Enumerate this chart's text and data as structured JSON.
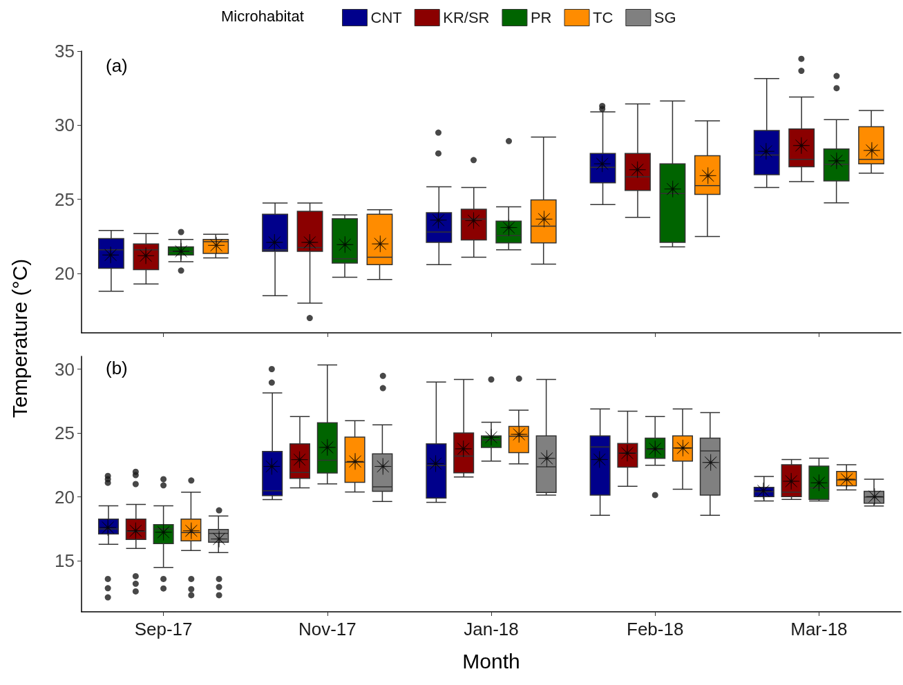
{
  "chart_data": [
    {
      "type": "box",
      "annotations": [
        "(a)"
      ],
      "categories": [
        null,
        null,
        null,
        null,
        null
      ],
      "ylim": [
        16,
        35
      ],
      "yticks": [
        20,
        25,
        30,
        35
      ],
      "tick_labels": "y",
      "series": [
        {
          "color": "#00008b",
          "boxes": [
            {
              "low": 18.8,
              "q1": 20.35,
              "median": 21.6,
              "q3": 22.36,
              "high": 22.9,
              "mean": 21.25
            },
            {
              "low": 18.5,
              "q1": 21.5,
              "median": 21.6,
              "q3": 24.0,
              "high": 24.75,
              "mean": 22.1
            },
            {
              "low": 20.6,
              "q1": 22.1,
              "median": 22.8,
              "q3": 24.1,
              "high": 25.85,
              "mean": 23.6,
              "outliers": [
                28.1,
                29.5
              ]
            },
            {
              "low": 24.65,
              "q1": 26.12,
              "median": 27.16,
              "q3": 28.1,
              "high": 30.9,
              "mean": 27.4,
              "outliers": [
                31.1,
                31.3
              ]
            },
            {
              "low": 25.8,
              "q1": 26.67,
              "median": 27.99,
              "q3": 29.65,
              "high": 33.15,
              "mean": 28.24
            }
          ]
        },
        {
          "color": "#8b0000",
          "boxes": [
            {
              "low": 19.3,
              "q1": 20.26,
              "median": 21.6,
              "q3": 22.0,
              "high": 22.7,
              "mean": 21.2
            },
            {
              "low": 18.0,
              "q1": 21.5,
              "median": 21.75,
              "q3": 24.2,
              "high": 24.75,
              "mean": 22.1,
              "outliers": [
                17.0
              ]
            },
            {
              "low": 21.1,
              "q1": 22.26,
              "median": 23.67,
              "q3": 24.34,
              "high": 25.8,
              "mean": 23.57,
              "outliers": [
                27.65
              ]
            },
            {
              "low": 23.79,
              "q1": 25.6,
              "median": 26.53,
              "q3": 28.1,
              "high": 31.44,
              "mean": 27.0
            },
            {
              "low": 26.2,
              "q1": 27.2,
              "median": 27.7,
              "q3": 29.75,
              "high": 31.9,
              "mean": 28.63,
              "outliers": [
                33.67,
                34.48
              ]
            }
          ]
        },
        {
          "color": "#006400",
          "boxes": [
            {
              "low": 20.8,
              "q1": 21.25,
              "median": 21.5,
              "q3": 21.8,
              "high": 22.3,
              "mean": 21.5,
              "outliers": [
                20.2,
                22.8
              ]
            },
            {
              "low": 19.75,
              "q1": 20.7,
              "median": 21.0,
              "q3": 23.7,
              "high": 23.95,
              "mean": 21.95
            },
            {
              "low": 21.6,
              "q1": 22.06,
              "median": 22.55,
              "q3": 23.53,
              "high": 24.5,
              "mean": 23.1,
              "outliers": [
                28.93
              ]
            },
            {
              "low": 21.8,
              "q1": 22.1,
              "median": 25.4,
              "q3": 27.4,
              "high": 31.64,
              "mean": 25.7
            },
            {
              "low": 24.77,
              "q1": 26.24,
              "median": 27.36,
              "q3": 28.4,
              "high": 30.38,
              "mean": 27.6,
              "outliers": [
                32.5,
                33.32
              ]
            }
          ]
        },
        {
          "color": "#ff8c00",
          "boxes": [
            {
              "low": 21.05,
              "q1": 21.35,
              "median": 22.15,
              "q3": 22.3,
              "high": 22.65,
              "mean": 21.9
            },
            {
              "low": 19.6,
              "q1": 20.6,
              "median": 21.1,
              "q3": 24.0,
              "high": 24.3,
              "mean": 22.0
            },
            {
              "low": 20.63,
              "q1": 22.06,
              "median": 23.2,
              "q3": 24.96,
              "high": 29.2,
              "mean": 23.67
            },
            {
              "low": 22.5,
              "q1": 25.34,
              "median": 25.93,
              "q3": 27.95,
              "high": 30.3,
              "mean": 26.6
            },
            {
              "low": 26.77,
              "q1": 27.4,
              "median": 27.7,
              "q3": 29.9,
              "high": 30.99,
              "mean": 28.3
            }
          ]
        }
      ]
    },
    {
      "type": "box",
      "annotations": [
        "(b)"
      ],
      "categories": [
        "Sep-17",
        "Nov-17",
        "Jan-18",
        "Feb-18",
        "Mar-18"
      ],
      "ylim": [
        11,
        31
      ],
      "yticks": [
        15,
        20,
        25,
        30
      ],
      "xlabel": "Month",
      "ylabel": "Temperature (°C)",
      "legend": "top",
      "legend_title": "Microhabitat",
      "series": [
        {
          "name": "CNT",
          "color": "#00008b",
          "boxes": [
            {
              "low": 16.28,
              "q1": 17.09,
              "median": 17.49,
              "q3": 18.26,
              "high": 19.3,
              "mean": 17.6,
              "outliers": [
                12.13,
                12.85,
                13.57,
                21.1,
                21.38,
                21.64
              ]
            },
            {
              "low": 19.79,
              "q1": 20.1,
              "median": 20.47,
              "q3": 23.55,
              "high": 28.13,
              "mean": 22.38,
              "outliers": [
                28.94,
                30.0
              ]
            },
            {
              "low": 19.57,
              "q1": 19.9,
              "median": 22.45,
              "q3": 24.15,
              "high": 28.98,
              "mean": 22.6
            },
            {
              "low": 18.55,
              "q1": 20.14,
              "median": 23.91,
              "q3": 24.77,
              "high": 26.88,
              "mean": 22.92
            },
            {
              "low": 19.68,
              "q1": 20.02,
              "median": 20.4,
              "q3": 20.75,
              "high": 21.6,
              "mean": 20.47
            }
          ]
        },
        {
          "name": "KR/SR",
          "color": "#8b0000",
          "boxes": [
            {
              "low": 15.96,
              "q1": 16.66,
              "median": 17.3,
              "q3": 18.26,
              "high": 19.4,
              "mean": 17.34,
              "outliers": [
                12.6,
                13.2,
                13.79,
                21.0,
                21.7,
                21.96
              ]
            },
            {
              "low": 20.7,
              "q1": 21.45,
              "median": 21.91,
              "q3": 24.15,
              "high": 26.28,
              "mean": 22.91
            },
            {
              "low": 21.56,
              "q1": 21.88,
              "median": 23.19,
              "q3": 25.0,
              "high": 29.19,
              "mean": 23.76
            },
            {
              "low": 20.82,
              "q1": 22.33,
              "median": 23.42,
              "q3": 24.17,
              "high": 26.7,
              "mean": 23.42
            },
            {
              "low": 19.8,
              "q1": 20.02,
              "median": 20.36,
              "q3": 22.51,
              "high": 22.92,
              "mean": 21.22
            }
          ]
        },
        {
          "name": "PR",
          "color": "#006400",
          "boxes": [
            {
              "low": 14.47,
              "q1": 16.34,
              "median": 17.49,
              "q3": 17.83,
              "high": 19.3,
              "mean": 17.23,
              "outliers": [
                12.83,
                13.57,
                20.9,
                21.38
              ]
            },
            {
              "low": 21.02,
              "q1": 21.87,
              "median": 22.87,
              "q3": 25.8,
              "high": 30.32,
              "mean": 23.87
            },
            {
              "low": 22.8,
              "q1": 23.87,
              "median": 24.44,
              "q3": 24.77,
              "high": 25.84,
              "mean": 24.66,
              "outliers": [
                29.19
              ]
            },
            {
              "low": 22.47,
              "q1": 23.01,
              "median": 23.71,
              "q3": 24.59,
              "high": 26.29,
              "mean": 23.76,
              "outliers": [
                20.14
              ]
            },
            {
              "low": 19.68,
              "q1": 19.8,
              "median": 20.7,
              "q3": 22.4,
              "high": 23.03,
              "mean": 21.1
            }
          ]
        },
        {
          "name": "TC",
          "color": "#ff8c00",
          "boxes": [
            {
              "low": 15.8,
              "q1": 16.55,
              "median": 17.2,
              "q3": 18.26,
              "high": 20.36,
              "mean": 17.34,
              "outliers": [
                12.3,
                12.77,
                13.57,
                21.28
              ]
            },
            {
              "low": 20.38,
              "q1": 21.13,
              "median": 22.72,
              "q3": 24.68,
              "high": 25.96,
              "mean": 22.77
            },
            {
              "low": 22.58,
              "q1": 23.46,
              "median": 24.75,
              "q3": 25.52,
              "high": 26.79,
              "mean": 24.89,
              "outliers": [
                29.25
              ]
            },
            {
              "low": 20.59,
              "q1": 22.8,
              "median": 23.82,
              "q3": 24.77,
              "high": 26.88,
              "mean": 23.82
            },
            {
              "low": 20.54,
              "q1": 20.86,
              "median": 21.33,
              "q3": 21.99,
              "high": 22.51,
              "mean": 21.38
            }
          ]
        },
        {
          "name": "SG",
          "color": "#808080",
          "boxes": [
            {
              "low": 15.64,
              "q1": 16.45,
              "median": 17.13,
              "q3": 17.45,
              "high": 18.5,
              "mean": 16.7,
              "outliers": [
                12.3,
                12.94,
                13.57,
                18.94
              ]
            },
            {
              "low": 19.64,
              "q1": 20.43,
              "median": 20.79,
              "q3": 23.36,
              "high": 25.64,
              "mean": 22.38,
              "outliers": [
                28.51,
                29.47
              ]
            },
            {
              "low": 20.14,
              "q1": 20.34,
              "median": 22.35,
              "q3": 24.77,
              "high": 29.19,
              "mean": 23.01
            },
            {
              "low": 18.55,
              "q1": 20.14,
              "median": 23.6,
              "q3": 24.59,
              "high": 26.59,
              "mean": 22.69
            },
            {
              "low": 19.28,
              "q1": 19.5,
              "median": 19.98,
              "q3": 20.43,
              "high": 21.38,
              "mean": 20.02
            }
          ]
        }
      ]
    }
  ]
}
